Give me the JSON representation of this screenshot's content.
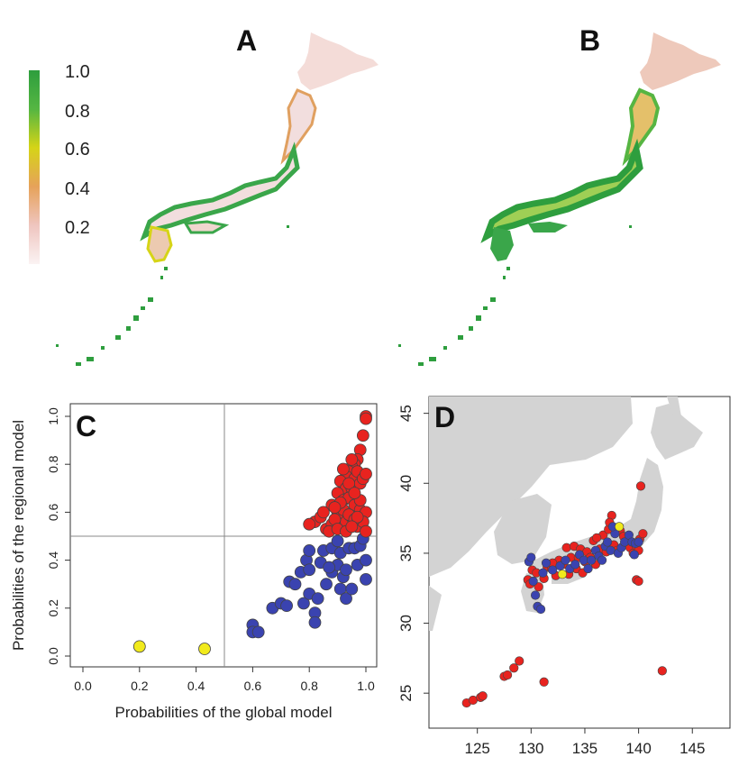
{
  "panels": {
    "a": "A",
    "b": "B",
    "c": "C",
    "d": "D"
  },
  "colors": {
    "high": "#2e9e3e",
    "mid": "#d6d417",
    "low": "#e6a25a",
    "zero": "#f5e3e3",
    "red_points": "#e8231f",
    "blue_points": "#3a43b0",
    "yellow_points": "#f1ea1c",
    "land_gray": "#d3d3d3"
  },
  "legend": {
    "ticks": [
      "1.0",
      "0.8",
      "0.6",
      "0.4",
      "0.2"
    ]
  },
  "chart_data": [
    {
      "type": "scatter",
      "panel": "C",
      "xlabel": "Probabilities of the global model",
      "ylabel": "Probabilities of the regional model",
      "xlim": [
        0,
        1
      ],
      "ylim": [
        0,
        1
      ],
      "xticks": [
        "0.0",
        "0.2",
        "0.4",
        "0.6",
        "0.8",
        "1.0"
      ],
      "yticks": [
        "0.0",
        "0.2",
        "0.4",
        "0.6",
        "0.8",
        "1.0"
      ],
      "reference_lines": {
        "x": 0.5,
        "y": 0.5
      },
      "series": [
        {
          "color": "#f1ea1c",
          "points": [
            [
              0.2,
              0.04
            ],
            [
              0.43,
              0.03
            ]
          ]
        },
        {
          "color": "#3a43b0",
          "points": [
            [
              0.6,
              0.13
            ],
            [
              0.6,
              0.1
            ],
            [
              0.62,
              0.1
            ],
            [
              0.67,
              0.2
            ],
            [
              0.7,
              0.22
            ],
            [
              0.72,
              0.21
            ],
            [
              0.73,
              0.31
            ],
            [
              0.75,
              0.3
            ],
            [
              0.77,
              0.35
            ],
            [
              0.78,
              0.22
            ],
            [
              0.79,
              0.4
            ],
            [
              0.8,
              0.26
            ],
            [
              0.8,
              0.36
            ],
            [
              0.8,
              0.44
            ],
            [
              0.82,
              0.18
            ],
            [
              0.82,
              0.14
            ],
            [
              0.83,
              0.24
            ],
            [
              0.84,
              0.39
            ],
            [
              0.85,
              0.44
            ],
            [
              0.86,
              0.3
            ],
            [
              0.88,
              0.35
            ],
            [
              0.88,
              0.45
            ],
            [
              0.9,
              0.38
            ],
            [
              0.91,
              0.28
            ],
            [
              0.91,
              0.43
            ],
            [
              0.92,
              0.33
            ],
            [
              0.93,
              0.24
            ],
            [
              0.94,
              0.45
            ],
            [
              0.95,
              0.28
            ],
            [
              0.96,
              0.45
            ],
            [
              0.97,
              0.38
            ],
            [
              0.98,
              0.46
            ],
            [
              1.0,
              0.4
            ],
            [
              1.0,
              0.32
            ],
            [
              0.99,
              0.49
            ],
            [
              0.9,
              0.48
            ],
            [
              0.93,
              0.36
            ],
            [
              0.87,
              0.37
            ]
          ]
        },
        {
          "color": "#e8231f",
          "points": [
            [
              1.0,
              1.0
            ],
            [
              1.0,
              0.99
            ],
            [
              0.99,
              0.92
            ],
            [
              0.98,
              0.86
            ],
            [
              0.97,
              0.82
            ],
            [
              0.96,
              0.8
            ],
            [
              0.95,
              0.79
            ],
            [
              0.94,
              0.77
            ],
            [
              0.93,
              0.75
            ],
            [
              0.92,
              0.72
            ],
            [
              0.91,
              0.73
            ],
            [
              0.93,
              0.7
            ],
            [
              0.95,
              0.7
            ],
            [
              0.96,
              0.74
            ],
            [
              0.97,
              0.77
            ],
            [
              0.98,
              0.72
            ],
            [
              0.99,
              0.74
            ],
            [
              1.0,
              0.76
            ],
            [
              0.9,
              0.68
            ],
            [
              0.92,
              0.65
            ],
            [
              0.94,
              0.66
            ],
            [
              0.96,
              0.63
            ],
            [
              0.98,
              0.61
            ],
            [
              1.0,
              0.6
            ],
            [
              0.88,
              0.63
            ],
            [
              0.9,
              0.6
            ],
            [
              0.91,
              0.58
            ],
            [
              0.93,
              0.56
            ],
            [
              0.95,
              0.58
            ],
            [
              0.97,
              0.54
            ],
            [
              0.99,
              0.56
            ],
            [
              1.0,
              0.52
            ],
            [
              0.82,
              0.56
            ],
            [
              0.84,
              0.58
            ],
            [
              0.86,
              0.53
            ],
            [
              0.88,
              0.55
            ],
            [
              0.8,
              0.55
            ],
            [
              0.85,
              0.6
            ],
            [
              0.89,
              0.57
            ],
            [
              0.92,
              0.61
            ],
            [
              0.94,
              0.59
            ],
            [
              0.96,
              0.57
            ],
            [
              0.87,
              0.52
            ],
            [
              0.9,
              0.53
            ],
            [
              0.93,
              0.52
            ],
            [
              0.97,
              0.58
            ],
            [
              0.95,
              0.54
            ],
            [
              0.98,
              0.65
            ],
            [
              0.91,
              0.64
            ],
            [
              0.89,
              0.62
            ],
            [
              0.94,
              0.72
            ],
            [
              0.96,
              0.68
            ],
            [
              0.92,
              0.78
            ],
            [
              0.95,
              0.82
            ]
          ]
        }
      ]
    },
    {
      "type": "scatter",
      "panel": "D",
      "xlim": [
        120.5,
        148.5
      ],
      "ylim": [
        22.5,
        46.2
      ],
      "xticks": [
        "125",
        "130",
        "135",
        "140",
        "145"
      ],
      "yticks": [
        "25",
        "30",
        "35",
        "40",
        "45"
      ],
      "series": [
        {
          "color": "#e8231f",
          "points": [
            [
              124,
              24.3
            ],
            [
              124.6,
              24.5
            ],
            [
              125.3,
              24.7
            ],
            [
              125.5,
              24.8
            ],
            [
              127.5,
              26.2
            ],
            [
              127.8,
              26.3
            ],
            [
              128.4,
              26.8
            ],
            [
              128.9,
              27.3
            ],
            [
              131.2,
              25.8
            ],
            [
              142.2,
              26.6
            ],
            [
              129.7,
              33.1
            ],
            [
              129.9,
              32.8
            ],
            [
              130.1,
              33.8
            ],
            [
              130.5,
              33.6
            ],
            [
              130.7,
              32.6
            ],
            [
              131.2,
              33.2
            ],
            [
              131.5,
              34
            ],
            [
              131.9,
              33.9
            ],
            [
              132.3,
              33.4
            ],
            [
              132.6,
              34.5
            ],
            [
              133,
              34.2
            ],
            [
              133.3,
              35.4
            ],
            [
              133.7,
              34.7
            ],
            [
              134,
              35.5
            ],
            [
              134.2,
              33.9
            ],
            [
              134.4,
              34.7
            ],
            [
              134.6,
              35.3
            ],
            [
              135,
              34.4
            ],
            [
              135.2,
              35.1
            ],
            [
              135.5,
              34.7
            ],
            [
              135.8,
              35.9
            ],
            [
              136,
              34.2
            ],
            [
              136.4,
              35.3
            ],
            [
              136.7,
              36.3
            ],
            [
              137,
              35.1
            ],
            [
              137.2,
              36.7
            ],
            [
              137.5,
              37.7
            ],
            [
              137.7,
              35.6
            ],
            [
              138,
              35.2
            ],
            [
              138.3,
              36.6
            ],
            [
              138.6,
              36.2
            ],
            [
              138.9,
              35.7
            ],
            [
              139.2,
              35.4
            ],
            [
              139.5,
              35
            ],
            [
              139.8,
              35.5
            ],
            [
              140,
              35.2
            ],
            [
              140.1,
              36
            ],
            [
              140.4,
              36.4
            ],
            [
              140.2,
              39.8
            ],
            [
              139.8,
              33.1
            ],
            [
              140,
              33
            ],
            [
              137.3,
              37.2
            ],
            [
              136.1,
              36.1
            ],
            [
              132,
              34.3
            ],
            [
              134.8,
              33.6
            ],
            [
              133.5,
              33.5
            ]
          ]
        },
        {
          "color": "#3a43b0",
          "points": [
            [
              129.8,
              34.4
            ],
            [
              130,
              34.7
            ],
            [
              130.2,
              33
            ],
            [
              130.4,
              32
            ],
            [
              130.6,
              31.2
            ],
            [
              130.9,
              31
            ],
            [
              131.1,
              33.6
            ],
            [
              131.4,
              34.3
            ],
            [
              132,
              33.8
            ],
            [
              132.7,
              34.1
            ],
            [
              133.2,
              34.5
            ],
            [
              133.6,
              33.9
            ],
            [
              134.1,
              34.2
            ],
            [
              134.5,
              34.9
            ],
            [
              134.9,
              34.5
            ],
            [
              135.3,
              33.9
            ],
            [
              135.6,
              34.5
            ],
            [
              136,
              35.2
            ],
            [
              136.3,
              34.8
            ],
            [
              136.6,
              34.5
            ],
            [
              136.9,
              35.5
            ],
            [
              137.1,
              35.8
            ],
            [
              137.4,
              35.2
            ],
            [
              137.8,
              36.4
            ],
            [
              138.1,
              35
            ],
            [
              138.4,
              35.4
            ],
            [
              138.7,
              35.8
            ],
            [
              139.1,
              36.3
            ],
            [
              139.4,
              35.8
            ],
            [
              139.7,
              35.7
            ],
            [
              140,
              35.8
            ],
            [
              139.6,
              34.9
            ],
            [
              137.6,
              36.9
            ]
          ]
        },
        {
          "color": "#f1ea1c",
          "points": [
            [
              132.9,
              33.5
            ],
            [
              138.2,
              36.9
            ]
          ]
        }
      ]
    }
  ]
}
